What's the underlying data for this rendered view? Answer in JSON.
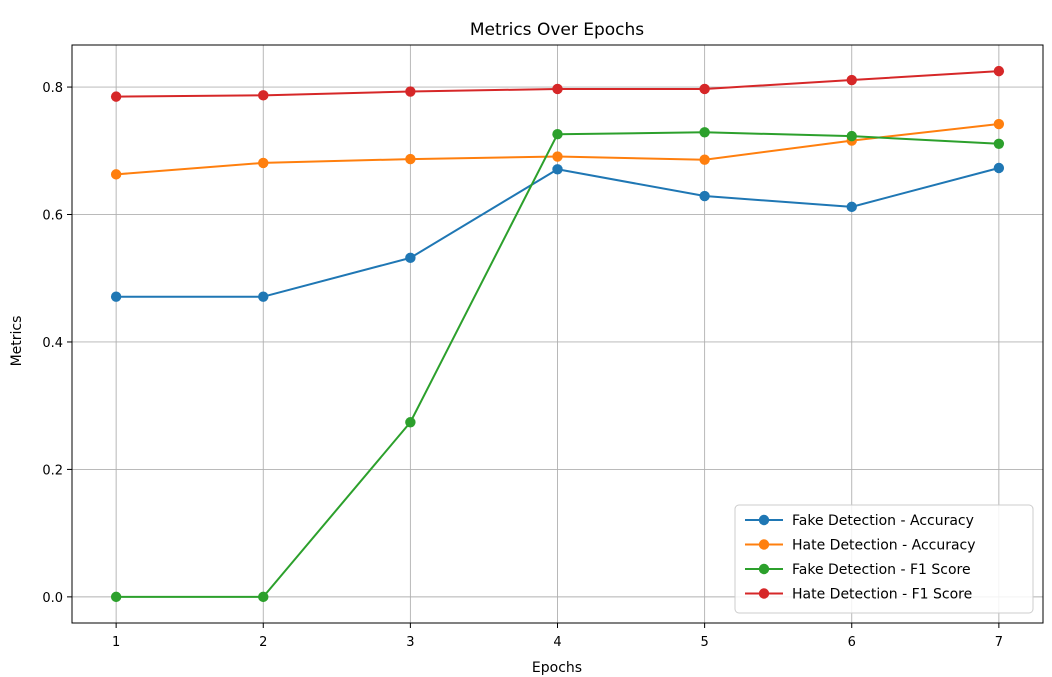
{
  "chart_data": {
    "type": "line",
    "title": "Metrics Over Epochs",
    "xlabel": "Epochs",
    "ylabel": "Metrics",
    "x": [
      1,
      2,
      3,
      4,
      5,
      6,
      7
    ],
    "x_ticks": [
      "1",
      "2",
      "3",
      "4",
      "5",
      "6",
      "7"
    ],
    "y_ticks": [
      "0.0",
      "0.2",
      "0.4",
      "0.6",
      "0.8"
    ],
    "xlim": [
      0.7,
      7.3
    ],
    "ylim": [
      -0.041,
      0.866
    ],
    "grid": true,
    "legend_position": "bottom-right",
    "markers": "circle",
    "series": [
      {
        "name": "Fake Detection - Accuracy",
        "color": "#1f77b4",
        "values": [
          0.471,
          0.471,
          0.532,
          0.671,
          0.629,
          0.612,
          0.673
        ]
      },
      {
        "name": "Hate Detection - Accuracy",
        "color": "#ff7f0e",
        "values": [
          0.663,
          0.681,
          0.687,
          0.691,
          0.686,
          0.716,
          0.742
        ]
      },
      {
        "name": "Fake Detection - F1 Score",
        "color": "#2ca02c",
        "values": [
          0.0,
          0.0,
          0.274,
          0.726,
          0.729,
          0.723,
          0.711
        ]
      },
      {
        "name": "Hate Detection - F1 Score",
        "color": "#d62728",
        "values": [
          0.785,
          0.787,
          0.793,
          0.797,
          0.797,
          0.811,
          0.825
        ]
      }
    ]
  }
}
